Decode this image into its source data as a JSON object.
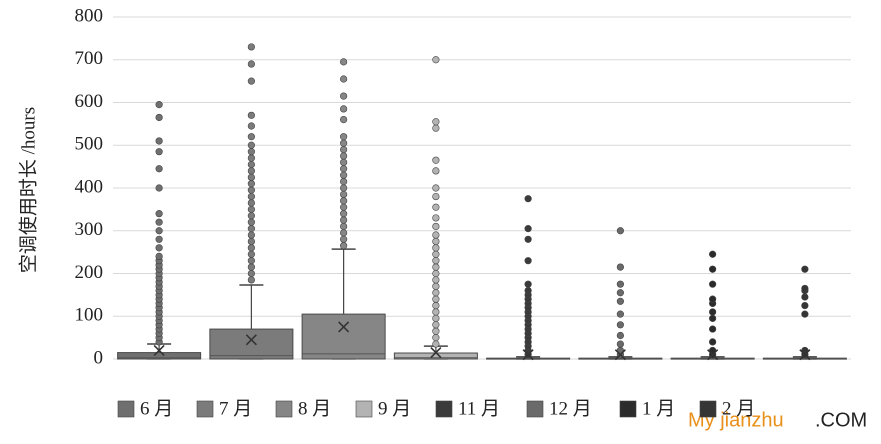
{
  "chart_data": {
    "type": "box",
    "y_label": "空调使用时长 /hours",
    "ylim": [
      0,
      800
    ],
    "yticks": [
      0,
      100,
      200,
      300,
      400,
      500,
      600,
      700,
      800
    ],
    "grid": true,
    "watermark": [
      "My jianzhu",
      ".COM"
    ],
    "series": [
      {
        "name": "6 月",
        "color": "#6f6f6f",
        "q1": 0,
        "median": 3,
        "q3": 15,
        "whisker_low": 0,
        "whisker_high": 35,
        "mean": 20,
        "outliers": [
          40,
          50,
          60,
          70,
          80,
          90,
          100,
          110,
          120,
          130,
          140,
          150,
          160,
          170,
          180,
          190,
          200,
          210,
          220,
          230,
          240,
          260,
          280,
          300,
          320,
          340,
          400,
          445,
          485,
          510,
          565,
          595
        ]
      },
      {
        "name": "7 月",
        "color": "#7b7b7b",
        "q1": 0,
        "median": 8,
        "q3": 70,
        "whisker_low": 0,
        "whisker_high": 173,
        "mean": 45,
        "outliers": [
          185,
          200,
          215,
          230,
          245,
          260,
          275,
          290,
          305,
          320,
          335,
          350,
          365,
          380,
          395,
          410,
          425,
          440,
          455,
          470,
          485,
          500,
          520,
          545,
          570,
          650,
          690,
          730
        ]
      },
      {
        "name": "8 月",
        "color": "#868686",
        "q1": 0,
        "median": 12,
        "q3": 105,
        "whisker_low": 0,
        "whisker_high": 257,
        "mean": 75,
        "outliers": [
          265,
          280,
          295,
          310,
          325,
          340,
          355,
          370,
          385,
          400,
          415,
          430,
          445,
          460,
          475,
          490,
          505,
          520,
          560,
          585,
          615,
          655,
          695
        ]
      },
      {
        "name": "9 月",
        "color": "#b3b3b3",
        "q1": 0,
        "median": 3,
        "q3": 14,
        "whisker_low": 0,
        "whisker_high": 30,
        "mean": 15,
        "outliers": [
          35,
          50,
          65,
          80,
          95,
          110,
          125,
          140,
          155,
          170,
          185,
          200,
          215,
          230,
          245,
          260,
          275,
          290,
          310,
          330,
          355,
          380,
          400,
          440,
          465,
          540,
          555,
          700
        ]
      },
      {
        "name": "11 月",
        "color": "#3b3b3b",
        "q1": 0,
        "median": 0,
        "q3": 2,
        "whisker_low": 0,
        "whisker_high": 5,
        "mean": 10,
        "outliers": [
          10,
          20,
          30,
          40,
          50,
          60,
          70,
          80,
          90,
          100,
          110,
          120,
          130,
          140,
          150,
          160,
          175,
          230,
          280,
          305,
          375
        ]
      },
      {
        "name": "12 月",
        "color": "#6a6a6a",
        "q1": 0,
        "median": 0,
        "q3": 2,
        "whisker_low": 0,
        "whisker_high": 5,
        "mean": 10,
        "outliers": [
          10,
          20,
          35,
          55,
          80,
          105,
          135,
          155,
          175,
          215,
          300
        ]
      },
      {
        "name": "1 月",
        "color": "#2b2b2b",
        "q1": 0,
        "median": 0,
        "q3": 2,
        "whisker_low": 0,
        "whisker_high": 5,
        "mean": 10,
        "outliers": [
          10,
          20,
          40,
          70,
          95,
          110,
          130,
          140,
          175,
          210,
          245
        ]
      },
      {
        "name": "2 月",
        "color": "#353535",
        "q1": 0,
        "median": 0,
        "q3": 2,
        "whisker_low": 0,
        "whisker_high": 5,
        "mean": 10,
        "outliers": [
          10,
          20,
          105,
          125,
          145,
          160,
          165,
          210
        ]
      }
    ]
  }
}
